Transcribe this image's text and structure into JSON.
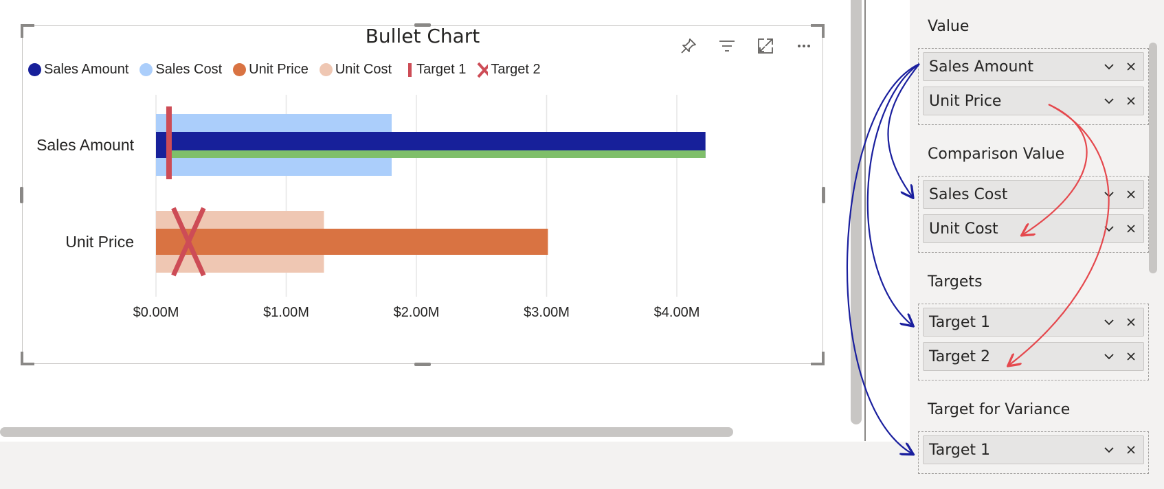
{
  "visual": {
    "title": "Bullet Chart",
    "header_icons": [
      "pin-icon",
      "filter-icon",
      "focus-mode-icon",
      "more-options-icon"
    ]
  },
  "legend": [
    {
      "label": "Sales Amount",
      "color": "#17209a",
      "marker": "circle"
    },
    {
      "label": "Sales Cost",
      "color": "#abcefb",
      "marker": "circle"
    },
    {
      "label": "Unit Price",
      "color": "#d97342",
      "marker": "circle"
    },
    {
      "label": "Unit Cost",
      "color": "#efc7b3",
      "marker": "circle"
    },
    {
      "label": "Target 1",
      "color": "#cd4c56",
      "marker": "line"
    },
    {
      "label": "Target 2",
      "color": "#cd4c56",
      "marker": "x"
    }
  ],
  "chart_data": {
    "type": "bar",
    "orientation": "horizontal",
    "title": "Bullet Chart",
    "categories": [
      "Sales Amount",
      "Unit Price"
    ],
    "xlim": [
      0,
      4.4
    ],
    "x_ticks": [
      0,
      1,
      2,
      3,
      4
    ],
    "x_tick_labels": [
      "$0.00M",
      "$1.00M",
      "$2.00M",
      "$3.00M",
      "$4.00M"
    ],
    "grid": true,
    "legend_position": "top-left",
    "series": [
      {
        "name": "Sales Amount",
        "category": "Sales Amount",
        "role": "value",
        "value": 4.22,
        "color": "#17209a",
        "variance_color": "#7fbf6a"
      },
      {
        "name": "Sales Cost",
        "category": "Sales Amount",
        "role": "comparison",
        "value": 1.81,
        "color": "#abcefb"
      },
      {
        "name": "Target 1",
        "category": "Sales Amount",
        "role": "target-line",
        "value": 0.1,
        "color": "#cd4c56"
      },
      {
        "name": "Unit Price",
        "category": "Unit Price",
        "role": "value",
        "value": 3.01,
        "color": "#d97342"
      },
      {
        "name": "Unit Cost",
        "category": "Unit Price",
        "role": "comparison",
        "value": 1.29,
        "color": "#efc7b3"
      },
      {
        "name": "Target 2",
        "category": "Unit Price",
        "role": "target-x",
        "value": 0.25,
        "color": "#cd4c56"
      }
    ]
  },
  "pane": {
    "sections": [
      {
        "title": "Value",
        "fields": [
          "Sales Amount",
          "Unit Price"
        ]
      },
      {
        "title": "Comparison Value",
        "fields": [
          "Sales Cost",
          "Unit Cost"
        ]
      },
      {
        "title": "Targets",
        "fields": [
          "Target 1",
          "Target 2"
        ]
      },
      {
        "title": "Target for Variance",
        "fields": [
          "Target 1"
        ]
      }
    ]
  },
  "annotations": {
    "blue_arrow_color": "#1a1f9e",
    "red_arrow_color": "#e5484d"
  }
}
